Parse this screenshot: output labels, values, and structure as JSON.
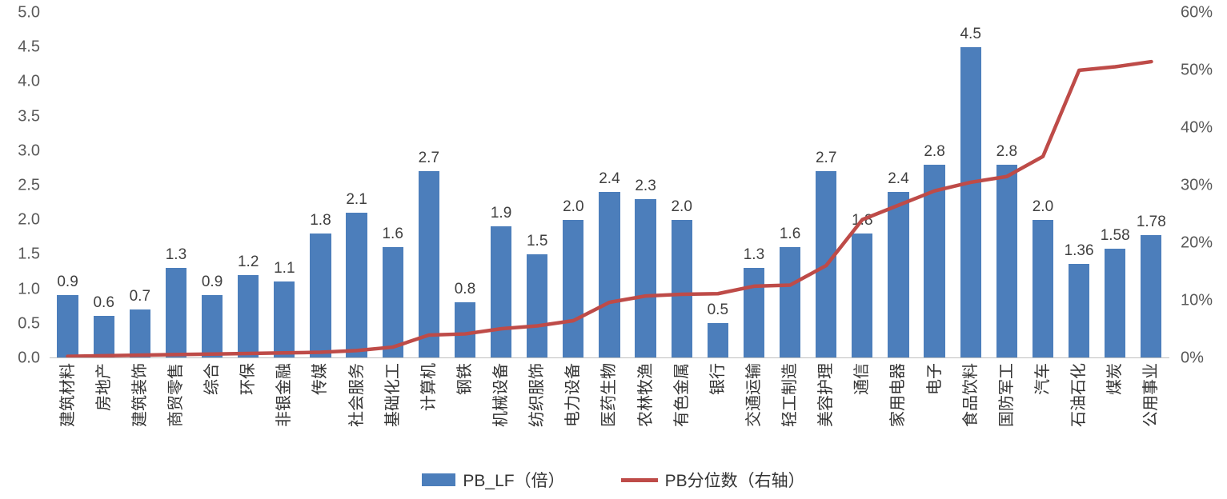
{
  "chart_data": {
    "type": "bar",
    "combo": "bar+line",
    "title": "",
    "categories": [
      "建筑材料",
      "房地产",
      "建筑装饰",
      "商贸零售",
      "综合",
      "环保",
      "非银金融",
      "传媒",
      "社会服务",
      "基础化工",
      "计算机",
      "钢铁",
      "机械设备",
      "纺织服饰",
      "电力设备",
      "医药生物",
      "农林牧渔",
      "有色金属",
      "银行",
      "交通运输",
      "轻工制造",
      "美容护理",
      "通信",
      "家用电器",
      "电子",
      "食品饮料",
      "国防军工",
      "汽车",
      "石油石化",
      "煤炭",
      "公用事业"
    ],
    "bar_series": {
      "name": "PB_LF（倍）",
      "axis": "left",
      "color": "#4C7EBB",
      "values": [
        0.9,
        0.6,
        0.7,
        1.3,
        0.9,
        1.2,
        1.1,
        1.8,
        2.1,
        1.6,
        2.7,
        0.8,
        1.9,
        1.5,
        2.0,
        2.4,
        2.3,
        2.0,
        0.5,
        1.3,
        1.6,
        2.7,
        1.8,
        2.4,
        2.8,
        4.5,
        2.8,
        2.0,
        1.36,
        1.58,
        1.78
      ],
      "labels": [
        "0.9",
        "0.6",
        "0.7",
        "1.3",
        "0.9",
        "1.2",
        "1.1",
        "1.8",
        "2.1",
        "1.6",
        "2.7",
        "0.8",
        "1.9",
        "1.5",
        "2.0",
        "2.4",
        "2.3",
        "2.0",
        "0.5",
        "1.3",
        "1.6",
        "2.7",
        "1.8",
        "2.4",
        "2.8",
        "4.5",
        "2.8",
        "2.0",
        "1.36",
        "1.58",
        "1.78"
      ]
    },
    "line_series": {
      "name": "PB分位数（右轴）",
      "axis": "right",
      "color": "#BE4B48",
      "values_percent": [
        0.2,
        0.3,
        0.4,
        0.5,
        0.6,
        0.7,
        0.8,
        0.9,
        1.2,
        1.8,
        3.9,
        4.1,
        5.0,
        5.5,
        6.4,
        9.6,
        10.7,
        11.0,
        11.1,
        12.4,
        12.6,
        16.0,
        24.0,
        26.5,
        29.0,
        30.5,
        31.5,
        35.0,
        50.0,
        50.6,
        51.5
      ]
    },
    "left_axis": {
      "min": 0,
      "max": 5,
      "ticks": [
        "5.0",
        "4.5",
        "4.0",
        "3.5",
        "3.0",
        "2.5",
        "2.0",
        "1.5",
        "1.0",
        "0.5",
        "0.0"
      ]
    },
    "right_axis": {
      "min": 0,
      "max": 60,
      "ticks": [
        "60%",
        "50%",
        "40%",
        "30%",
        "20%",
        "10%",
        "0%"
      ]
    },
    "legend": [
      "PB_LF（倍）",
      "PB分位数（右轴）"
    ],
    "grid": "off",
    "legend_position": "bottom-center"
  }
}
